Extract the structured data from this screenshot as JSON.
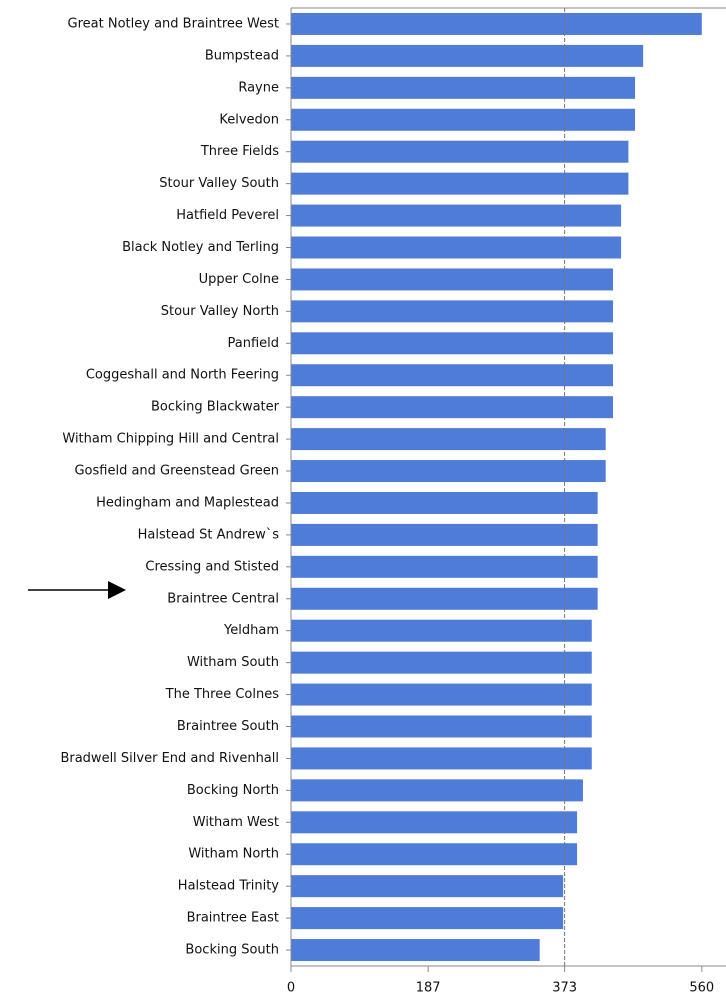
{
  "chart_data": {
    "type": "bar",
    "orientation": "horizontal",
    "categories": [
      "Great Notley and Braintree West",
      "Bumpstead",
      "Rayne",
      "Kelvedon",
      "Three Fields",
      "Stour Valley South",
      "Hatfield Peverel",
      "Black Notley and Terling",
      "Upper Colne",
      "Stour Valley North",
      "Panfield",
      "Coggeshall and North Feering",
      "Bocking Blackwater",
      "Witham Chipping Hill and Central",
      "Gosfield and Greenstead Green",
      "Hedingham and Maplestead",
      "Halstead St Andrew`s",
      "Cressing and Stisted",
      "Braintree Central",
      "Yeldham",
      "Witham South",
      "The Three Colnes",
      "Braintree South",
      "Bradwell Silver End and Rivenhall",
      "Bocking North",
      "Witham West",
      "Witham North",
      "Halstead Trinity",
      "Braintree East",
      "Bocking South"
    ],
    "values": [
      560,
      480,
      469,
      469,
      460,
      460,
      450,
      450,
      439,
      439,
      439,
      439,
      439,
      429,
      429,
      418,
      418,
      418,
      418,
      410,
      410,
      410,
      410,
      410,
      398,
      390,
      390,
      371,
      371,
      339
    ],
    "color": "#4f7bd9",
    "xlim": [
      0,
      593
    ],
    "xticks": [
      0,
      187,
      373,
      560
    ],
    "reference_line": 373
  }
}
